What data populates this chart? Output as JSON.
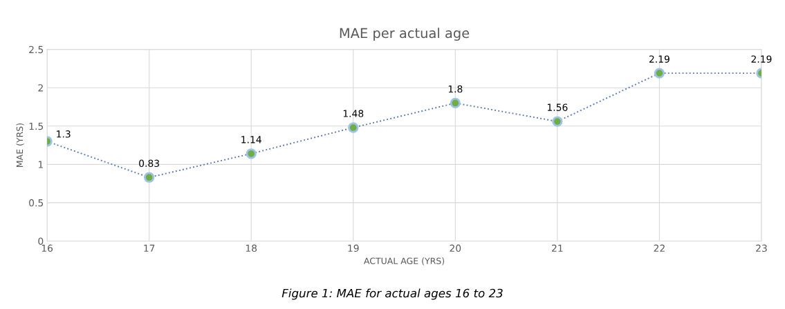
{
  "chart_data": {
    "type": "line",
    "title": "MAE per actual age",
    "xlabel": "ACTUAL AGE (YRS)",
    "ylabel": "MAE (YRS)",
    "x": [
      16,
      17,
      18,
      19,
      20,
      21,
      22,
      23
    ],
    "series": [
      {
        "color": "#5b7cb8",
        "colors": [
          "#70ad47",
          "#70ad47",
          "#70ad47",
          "#70ad47",
          "#70ad47",
          "#70ad47",
          "#70ad47",
          "#70ad47"
        ],
        "values": [
          1.3,
          0.83,
          1.14,
          1.48,
          1.8,
          1.56,
          2.19,
          2.19
        ]
      }
    ],
    "xlim": [
      16,
      23
    ],
    "xticks": [
      16,
      17,
      18,
      19,
      20,
      21,
      22,
      23
    ],
    "ylim": [
      0,
      2.5
    ],
    "yticks": [
      0,
      0.5,
      1,
      1.5,
      2,
      2.5
    ],
    "grid": true,
    "marker": "circle",
    "line_style": "dotted",
    "data_labels": true,
    "annotations": [
      "Figure 1: MAE for actual ages 16 to 23"
    ]
  }
}
